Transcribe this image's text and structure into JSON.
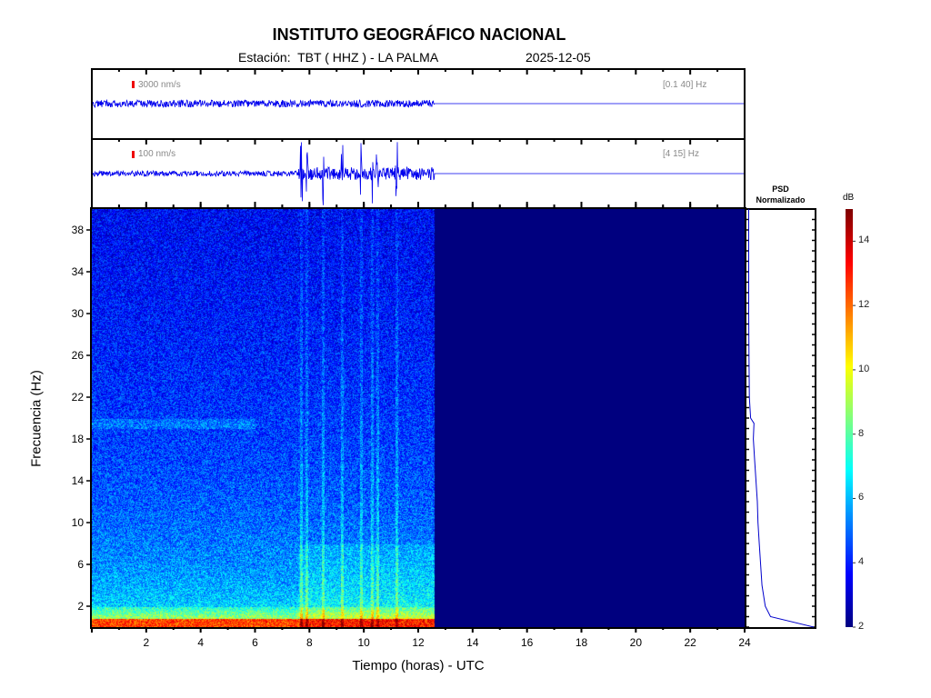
{
  "header": {
    "title": "INSTITUTO GEOGRÁFICO NACIONAL",
    "station": "Estación:  TBT ( HHZ ) - LA PALMA",
    "date": "2025-12-05"
  },
  "traces": [
    {
      "scale_label": "3000 nm/s",
      "band_label": "[0.1 40] Hz",
      "data_end_hour": 12.6
    },
    {
      "scale_label": "100 nm/s",
      "band_label": "[4 15] Hz",
      "data_end_hour": 12.6,
      "events_hours": [
        7.7,
        7.9,
        8.5,
        9.2,
        9.9,
        10.3,
        10.5,
        11.2
      ]
    }
  ],
  "chart_data": {
    "type": "heatmap",
    "xlabel": "Tiempo (horas) - UTC",
    "ylabel": "Frecuencia  (Hz)",
    "xlim": [
      0,
      24
    ],
    "ylim": [
      0,
      40
    ],
    "xticks": [
      "2",
      "4",
      "6",
      "8",
      "10",
      "12",
      "14",
      "16",
      "18",
      "20",
      "22",
      "24"
    ],
    "yticks": [
      "2",
      "6",
      "10",
      "14",
      "18",
      "22",
      "26",
      "30",
      "34",
      "38"
    ],
    "colormap": "jet",
    "data_end_hour": 12.6,
    "colorbar": {
      "label": "dB",
      "range": [
        2,
        15
      ],
      "ticks": [
        "2",
        "4",
        "6",
        "8",
        "10",
        "12",
        "14"
      ]
    },
    "psd": {
      "title_line1": "PSD",
      "title_line2": "Normalizado",
      "freq_hz": [
        0,
        1,
        2,
        4,
        6,
        8,
        10,
        12,
        14,
        16,
        18,
        19.5,
        20,
        22,
        26,
        30,
        34,
        38,
        40
      ],
      "value_norm": [
        1.0,
        0.35,
        0.27,
        0.22,
        0.2,
        0.18,
        0.16,
        0.15,
        0.13,
        0.11,
        0.09,
        0.1,
        0.05,
        0.03,
        0.025,
        0.02,
        0.02,
        0.02,
        0.02
      ],
      "color": "#0000cc"
    }
  }
}
